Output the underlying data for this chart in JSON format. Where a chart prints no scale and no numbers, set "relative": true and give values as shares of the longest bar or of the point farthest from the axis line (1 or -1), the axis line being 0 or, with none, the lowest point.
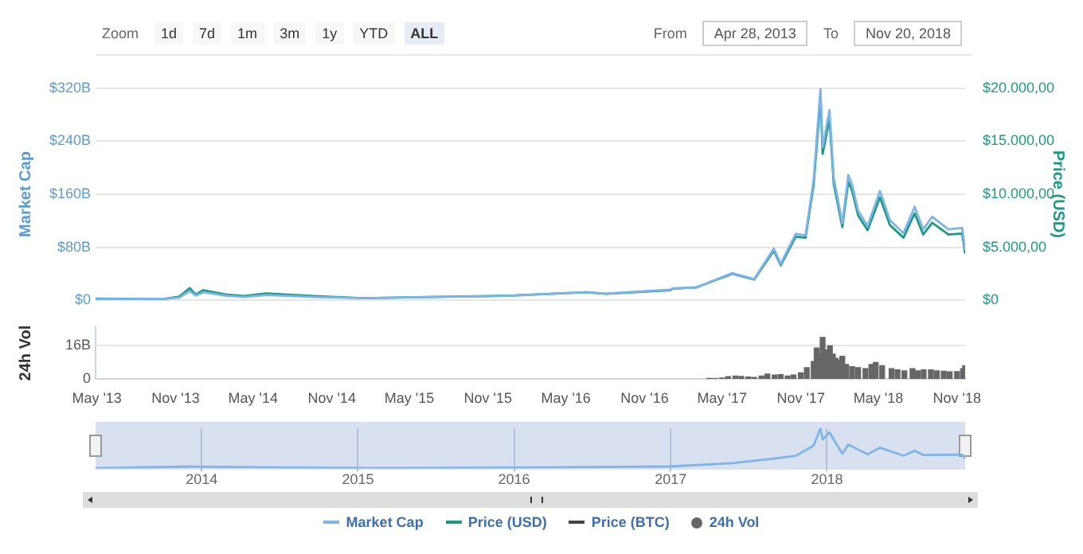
{
  "chart_data": [
    {
      "type": "line",
      "annotations": [
        "Zoom",
        "1d",
        "7d",
        "1m",
        "3m",
        "1y",
        "YTD",
        "ALL",
        "From",
        "Apr 28, 2013",
        "To",
        "Nov 20, 2018"
      ],
      "ylabel": "Market Cap",
      "y2label": "Price (USD)",
      "y3label": "24h Vol",
      "xlim": [
        "2013-04-28",
        "2018-11-20"
      ],
      "xticks": [
        {
          "value": "2013-05-01",
          "label": "May '13"
        },
        {
          "value": "2013-11-01",
          "label": "Nov '13"
        },
        {
          "value": "2014-05-01",
          "label": "May '14"
        },
        {
          "value": "2014-11-01",
          "label": "Nov '14"
        },
        {
          "value": "2015-05-01",
          "label": "May '15"
        },
        {
          "value": "2015-11-01",
          "label": "Nov '15"
        },
        {
          "value": "2016-05-01",
          "label": "May '16"
        },
        {
          "value": "2016-11-01",
          "label": "Nov '16"
        },
        {
          "value": "2017-05-01",
          "label": "May '17"
        },
        {
          "value": "2017-11-01",
          "label": "Nov '17"
        },
        {
          "value": "2018-05-01",
          "label": "May '18"
        },
        {
          "value": "2018-11-01",
          "label": "Nov '18"
        }
      ],
      "ylim": [
        0,
        320
      ],
      "yticks": [
        {
          "value": 0,
          "label": "$0"
        },
        {
          "value": 80,
          "label": "$80B"
        },
        {
          "value": 160,
          "label": "$160B"
        },
        {
          "value": 240,
          "label": "$240B"
        },
        {
          "value": 320,
          "label": "$320B"
        }
      ],
      "y2lim": [
        0,
        20000
      ],
      "y2ticks": [
        {
          "value": 0,
          "label": "$0"
        },
        {
          "value": 5000,
          "label": "$5.000,00"
        },
        {
          "value": 10000,
          "label": "$10.000,00"
        },
        {
          "value": 15000,
          "label": "$15.000,00"
        },
        {
          "value": 20000,
          "label": "$20.000,00"
        }
      ],
      "y3lim": [
        0,
        25
      ],
      "y3ticks": [
        0,
        {
          "value": 16,
          "label": "16B"
        }
      ],
      "grid": "y",
      "legend": "bottom",
      "marker": "none",
      "series": [
        {
          "name": "Market Cap",
          "color": "#7cb5ec",
          "axis": "y",
          "x": [
            "2013-04-28",
            "2013-10-01",
            "2013-11-10",
            "2013-12-04",
            "2013-12-18",
            "2014-01-05",
            "2014-02-25",
            "2014-04-10",
            "2014-06-01",
            "2014-09-20",
            "2015-01-14",
            "2015-04-01",
            "2015-11-04",
            "2016-01-01",
            "2016-06-17",
            "2016-08-01",
            "2016-12-31",
            "2017-01-05",
            "2017-03-01",
            "2017-05-25",
            "2017-07-15",
            "2017-08-30",
            "2017-09-15",
            "2017-10-20",
            "2017-11-12",
            "2017-12-01",
            "2017-12-17",
            "2017-12-22",
            "2018-01-07",
            "2018-01-17",
            "2018-02-06",
            "2018-02-20",
            "2018-03-01",
            "2018-03-15",
            "2018-04-06",
            "2018-05-05",
            "2018-05-28",
            "2018-06-29",
            "2018-07-25",
            "2018-08-14",
            "2018-09-04",
            "2018-10-12",
            "2018-11-13",
            "2018-11-20"
          ],
          "values": [
            2,
            2,
            4,
            14,
            7,
            12,
            7,
            5,
            8,
            5,
            3,
            4,
            6,
            7,
            12,
            10,
            16,
            18,
            19,
            41,
            32,
            78,
            55,
            100,
            98,
            182,
            320,
            231,
            287,
            185,
            116,
            189,
            174,
            135,
            112,
            165,
            121,
            101,
            141,
            107,
            126,
            107,
            109,
            76
          ]
        },
        {
          "name": "Price (USD)",
          "color": "#1a9a80",
          "axis": "y2",
          "x": [
            "2013-04-28",
            "2013-10-01",
            "2013-11-10",
            "2013-12-04",
            "2013-12-18",
            "2014-01-05",
            "2014-02-25",
            "2014-04-10",
            "2014-06-01",
            "2014-09-20",
            "2015-01-14",
            "2015-04-01",
            "2015-11-04",
            "2016-01-01",
            "2016-06-17",
            "2016-08-01",
            "2016-12-31",
            "2017-01-05",
            "2017-03-01",
            "2017-05-25",
            "2017-07-15",
            "2017-08-30",
            "2017-09-15",
            "2017-10-20",
            "2017-11-12",
            "2017-12-01",
            "2017-12-17",
            "2017-12-22",
            "2018-01-07",
            "2018-01-17",
            "2018-02-06",
            "2018-02-20",
            "2018-03-01",
            "2018-03-15",
            "2018-04-06",
            "2018-05-05",
            "2018-05-28",
            "2018-06-29",
            "2018-07-25",
            "2018-08-14",
            "2018-09-04",
            "2018-10-12",
            "2018-11-13",
            "2018-11-20"
          ],
          "values": [
            150,
            100,
            350,
            1150,
            550,
            950,
            550,
            400,
            650,
            400,
            200,
            250,
            400,
            450,
            750,
            600,
            950,
            1100,
            1200,
            2500,
            1950,
            4700,
            3300,
            6000,
            5900,
            10900,
            19100,
            13800,
            17100,
            11000,
            6900,
            11200,
            10300,
            8000,
            6600,
            9700,
            7100,
            5900,
            8200,
            6200,
            7300,
            6200,
            6300,
            4400
          ]
        },
        {
          "name": "Price (BTC)",
          "color": "#434348",
          "axis": "y2"
        },
        {
          "name": "24h Vol",
          "color": "#666666",
          "type": "bar",
          "axis": "y3",
          "x": [
            "2017-04-01",
            "2017-04-15",
            "2017-05-01",
            "2017-05-15",
            "2017-06-01",
            "2017-06-15",
            "2017-07-01",
            "2017-07-15",
            "2017-08-01",
            "2017-08-15",
            "2017-09-01",
            "2017-09-15",
            "2017-10-01",
            "2017-10-15",
            "2017-11-01",
            "2017-11-15",
            "2017-12-01",
            "2017-12-08",
            "2017-12-15",
            "2017-12-22",
            "2018-01-01",
            "2018-01-08",
            "2018-01-15",
            "2018-01-22",
            "2018-02-01",
            "2018-02-06",
            "2018-02-15",
            "2018-03-01",
            "2018-03-15",
            "2018-04-01",
            "2018-04-15",
            "2018-04-25",
            "2018-05-10",
            "2018-06-01",
            "2018-06-15",
            "2018-07-01",
            "2018-07-20",
            "2018-08-01",
            "2018-08-15",
            "2018-09-01",
            "2018-09-15",
            "2018-10-01",
            "2018-10-15",
            "2018-11-01",
            "2018-11-15",
            "2018-11-20"
          ],
          "values": [
            0.3,
            0.4,
            0.6,
            1.2,
            1.5,
            1.3,
            1.0,
            0.9,
            1.5,
            2.5,
            2.0,
            2.2,
            1.5,
            2.0,
            3.0,
            5.5,
            8.5,
            15,
            12,
            20,
            14,
            16,
            12,
            10,
            9,
            11,
            7,
            6,
            5.5,
            5,
            7,
            8,
            6.5,
            5,
            4.5,
            4,
            5,
            4,
            4.5,
            4.5,
            4,
            3.8,
            3.5,
            3.6,
            5,
            6.5
          ]
        }
      ]
    },
    {
      "type": "line",
      "relative": true,
      "grid": "x",
      "tick_labels": "x",
      "marker": "none",
      "xlim": [
        "2013-04-28",
        "2018-11-20"
      ],
      "xticks": [
        {
          "value": "2014-01-01",
          "label": "2014"
        },
        {
          "value": "2015-01-01",
          "label": "2015"
        },
        {
          "value": "2016-01-01",
          "label": "2016"
        },
        {
          "value": "2017-01-01",
          "label": "2017"
        },
        {
          "value": "2018-01-01",
          "label": "2018"
        }
      ],
      "series": [
        {
          "color": "#7cb5ec",
          "x": [
            "2013-04-28",
            "2013-12-04",
            "2014-06-01",
            "2015-01-14",
            "2016-01-01",
            "2016-12-31",
            "2017-05-25",
            "2017-08-30",
            "2017-10-20",
            "2017-12-01",
            "2017-12-17",
            "2017-12-22",
            "2018-01-07",
            "2018-02-06",
            "2018-02-20",
            "2018-04-06",
            "2018-05-05",
            "2018-06-29",
            "2018-07-25",
            "2018-08-14",
            "2018-11-13",
            "2018-11-20"
          ],
          "values": [
            0.005,
            0.043,
            0.026,
            0.008,
            0.02,
            0.048,
            0.128,
            0.243,
            0.312,
            0.569,
            1,
            0.722,
            0.897,
            0.363,
            0.591,
            0.35,
            0.516,
            0.316,
            0.441,
            0.334,
            0.341,
            0.238
          ]
        }
      ]
    }
  ]
}
